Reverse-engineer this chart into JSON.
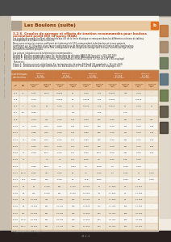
{
  "title": "Les Boulons (suite)",
  "section_title": "3.2.6. Couples de serrage et efforts de traction recommandés pour boulons",
  "section_title2": "normalisés profil ISO (d’après ISOA)",
  "page_bg": "#F0EAE0",
  "left_strip_color": "#C8BFB0",
  "top_strip_color": "#4A4A4A",
  "header_bar_color": "#E8C8A0",
  "header_text_color": "#7A3000",
  "section_title_color": "#C04010",
  "table_header_dark": "#C87840",
  "table_header_light": "#E8B888",
  "table_alt_row": "#EEE4D4",
  "table_white_row": "#F8F4EE",
  "table_border": "#B89060",
  "body_text_color": "#222222",
  "icon_bg": "#E07020",
  "right_strip_color": "#D0C8B8",
  "bottom_bar_color": "#2A2020",
  "page_num_color": "#888888",
  "tab_colors": [
    "#C07030",
    "#808060",
    "#506070",
    "#607040",
    "#504030"
  ],
  "row_data": [
    [
      "M 4",
      "0,7",
      "0,001",
      "100,0",
      "0,0025",
      "56",
      "0,003",
      "1,15",
      "0,0035",
      "448",
      "0,004",
      "–"
    ],
    [
      "M 5",
      "–",
      "0,116",
      "–",
      "0,0019",
      "45",
      "0,0078",
      "1,05",
      "0,0105",
      "–",
      "0,0175",
      "–"
    ],
    [
      "M 6",
      "1",
      "0,194",
      "40",
      "0,002",
      "47",
      "0,0175",
      "1,18",
      "0,0215",
      "41",
      "0,029",
      "50"
    ],
    [
      "M 7",
      "2,5",
      "0,094",
      "–",
      "–",
      "127",
      "–",
      "1,15",
      "–",
      "0,70",
      "–",
      "–"
    ],
    [
      "M 8",
      "–",
      "0,079",
      "115",
      "0,000",
      "1,25",
      "0,093",
      "208",
      "0,125",
      "401",
      "0,094",
      "340"
    ],
    [
      "M 10",
      "8",
      "0,149",
      "1100",
      "0,000",
      "1,25",
      "0,149",
      "208",
      "0,178",
      "501",
      "0,094",
      "1,48"
    ],
    [
      "M 12",
      "–",
      "0,386",
      "1100",
      "0,000",
      "1,25",
      "0,083",
      "208",
      "0,178",
      "501",
      "0,094",
      "1,25"
    ],
    [
      "M 14",
      "11",
      "0,986",
      "1100",
      "1,100",
      "1,01",
      "0,083",
      "208",
      "0,125",
      "601",
      "0,142",
      "1,25"
    ],
    [
      "M 16",
      "–",
      "1,045",
      "1100",
      "1,100",
      "1,01",
      "0,109",
      "208",
      "0,178",
      "601",
      "0,142",
      "1,55"
    ],
    [
      "M 18",
      "11",
      "1,048",
      "1040",
      "1,100",
      "1,01",
      "0,109",
      "1048",
      "0,178",
      "801",
      "0,094",
      "1,55"
    ],
    [
      "M 20",
      "21",
      "–",
      "1,7",
      "1,1",
      "1,52",
      "5,025",
      "0,0",
      "1,000",
      "1,45",
      "0,000",
      "–"
    ],
    [
      "M 22",
      "–",
      "4,000",
      "1900",
      "1,7",
      "1,054",
      "1,0",
      "5,048",
      "0,0",
      "1,100",
      "0,004",
      "–"
    ],
    [
      "M 24",
      "107,5",
      "8,000",
      "91,4",
      "6,000",
      "46",
      "1,0",
      "4,048",
      "1,4",
      "1,000",
      "11",
      "0,000"
    ],
    [
      "M 27",
      "11,4",
      "8,900",
      "940",
      "6,100",
      "44",
      "10,0",
      "5,000",
      "–",
      "1,000",
      "91",
      "0,000"
    ],
    [
      "M 30",
      "30",
      "25",
      "8 460",
      "951",
      "6 100",
      "19 750",
      "10",
      "17 950",
      "80",
      "11 500",
      "–"
    ],
    [
      "M 33",
      "60",
      "275",
      "8 000",
      "951",
      "8 100",
      "18 750",
      "10",
      "17 950",
      "94",
      "11 000",
      "–"
    ],
    [
      "M 36",
      "85",
      "11 000",
      "941",
      "8 460",
      "419",
      "18 750",
      "10",
      "17 950",
      "94",
      "11 000",
      "–"
    ],
    [
      "M 39",
      "95",
      "18 000",
      "951",
      "15 400",
      "419",
      "18 000",
      "114",
      "17 750",
      "186",
      "11 000",
      "–"
    ],
    [
      "M 42",
      "111",
      "20 000",
      "951",
      "15 400",
      "419",
      "41 000",
      "154",
      "41 750",
      "188",
      "41 000",
      "–"
    ],
    [
      "M 45",
      "117,5",
      "20 000",
      "951",
      "15 400",
      "419",
      "41 000",
      "154",
      "41 750",
      "196",
      "41 000",
      "–"
    ],
    [
      "M 48",
      "141,1",
      "28 000",
      "951",
      "17 750",
      "419",
      "60 000",
      "154",
      "61 750",
      "209",
      "61 000",
      "–"
    ]
  ],
  "col_headers_top": [
    "Caractéristiques\ndes boulons",
    "Bâtiment\nCl 4.8\nef.min\nK = 0,13\nde serrage",
    "Bâtiment\nCl 5.6\nef.min\nK = 0,13\nde serrage",
    "Bâtiment\nCl 8.8\nef. min\nK = 0,13\nde serrage",
    "Bâtiment\nCl 10.9\nef.min\nK = 0,13\nde serrage",
    "Bâtiment\nCl 12.9\nef.min\nK = 0,13\nde serrage"
  ],
  "col_headers_sub": [
    "M\nmm",
    "pas\nmm",
    "Couple de\nserrage\nNm",
    "Effort de\ntraction\ndaN",
    "Couple de\nserrage\nNm",
    "Effort de\ntraction\ndaN",
    "Couple de\nserrage\nNm",
    "Effort de\ntraction\ndaN",
    "Couple de\nserrage\nNm",
    "Effort de\ntraction\ndaN",
    "Couple de\nserrage\nNm",
    "Effort de\ntraction\ndaN"
  ],
  "note": "* Correspond au filetage fin"
}
